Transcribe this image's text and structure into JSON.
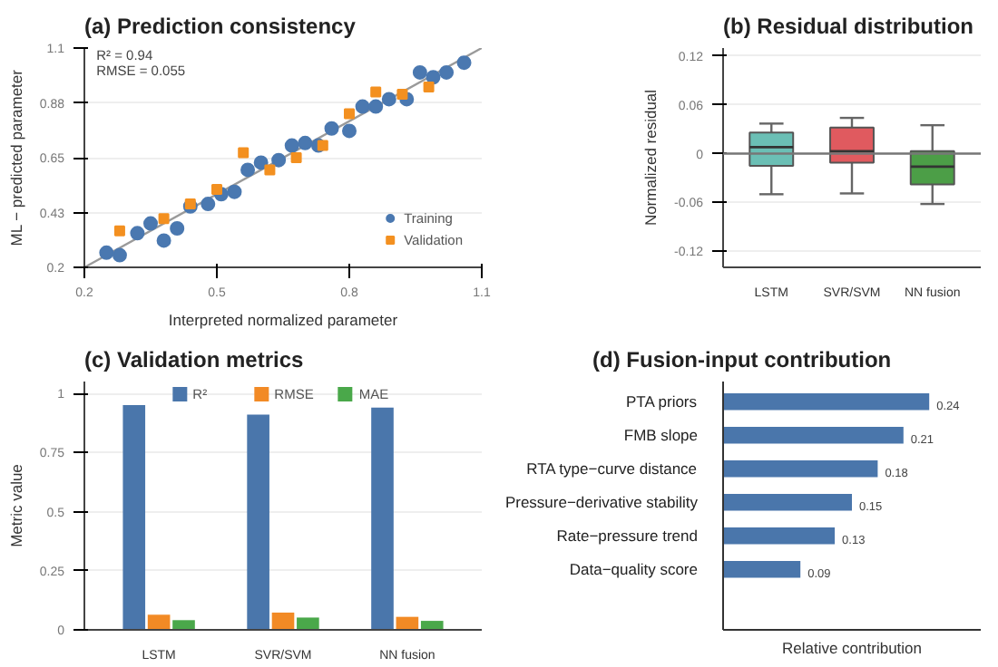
{
  "chart_data": [
    {
      "type": "scatter",
      "title": "(a) Prediction consistency",
      "xlabel": "Interpreted normalized parameter",
      "ylabel": "ML − predicted parameter",
      "xlim": [
        0.2,
        1.1
      ],
      "xticks": [
        0.2,
        0.5,
        0.8,
        1.1
      ],
      "ylim": [
        0.2,
        1.1
      ],
      "yticks": [
        0.2,
        {
          "value": 0.425,
          "label": "0.43"
        },
        0.65,
        {
          "value": 0.875,
          "label": "0.88"
        },
        1.1
      ],
      "grid": "y",
      "legend": "bottom right",
      "annotations": [
        "R² = 0.94",
        "RMSE = 0.055"
      ],
      "series": [
        {
          "type": "line",
          "color": "#9a9a9a",
          "x": [
            0.2,
            1.1
          ],
          "values": [
            0.2,
            1.1
          ]
        },
        {
          "name": "Training",
          "type": "scatter",
          "marker": "circle",
          "color": "#4a78b0",
          "x": [
            0.25,
            0.28,
            0.32,
            0.35,
            0.38,
            0.41,
            0.44,
            0.48,
            0.51,
            0.54,
            0.57,
            0.6,
            0.64,
            0.67,
            0.7,
            0.73,
            0.76,
            0.8,
            0.83,
            0.86,
            0.89,
            0.93,
            0.96,
            0.99,
            1.02,
            1.06
          ],
          "values": [
            0.26,
            0.25,
            0.34,
            0.38,
            0.31,
            0.36,
            0.45,
            0.46,
            0.5,
            0.51,
            0.6,
            0.63,
            0.64,
            0.7,
            0.71,
            0.7,
            0.77,
            0.76,
            0.86,
            0.86,
            0.89,
            0.89,
            1.0,
            0.98,
            1.0,
            1.04
          ]
        },
        {
          "name": "Validation",
          "type": "scatter",
          "marker": "square",
          "color": "#f39020",
          "x": [
            0.28,
            0.38,
            0.44,
            0.5,
            0.56,
            0.62,
            0.68,
            0.74,
            0.8,
            0.86,
            0.92,
            0.98
          ],
          "values": [
            0.35,
            0.4,
            0.46,
            0.52,
            0.67,
            0.6,
            0.65,
            0.7,
            0.83,
            0.92,
            0.91,
            0.94
          ]
        }
      ]
    },
    {
      "type": "box",
      "title": "(b) Residual distribution",
      "ylabel": "Normalized residual",
      "categories": [
        "LSTM",
        "SVR/SVM",
        "NN fusion"
      ],
      "colors": [
        "#6bbfb5",
        "#e05a5f",
        "#4c9e47"
      ],
      "ylim": [
        -0.14,
        0.13
      ],
      "yticks": [
        -0.12,
        -0.06,
        0,
        0.06,
        0.12
      ],
      "grid": "y",
      "ref_lines": [
        {
          "axis": "y",
          "value": 0,
          "color": "#777777"
        }
      ],
      "boxes": [
        {
          "low": -0.05,
          "q1": -0.015,
          "median": 0.008,
          "q3": 0.026,
          "high": 0.037
        },
        {
          "low": -0.049,
          "q1": -0.011,
          "median": 0.003,
          "q3": 0.032,
          "high": 0.044
        },
        {
          "low": -0.062,
          "q1": -0.038,
          "median": -0.016,
          "q3": 0.003,
          "high": 0.035
        }
      ]
    },
    {
      "type": "bar",
      "title": "(c) Validation metrics",
      "ylabel": "Metric value",
      "categories": [
        "LSTM",
        "SVR/SVM",
        "NN fusion"
      ],
      "ylim": [
        0,
        1.05
      ],
      "yticks": [
        0,
        0.25,
        0.5,
        0.75,
        1
      ],
      "grid": "y",
      "legend": "top",
      "series": [
        {
          "name": "R²",
          "color": "#4a76ab",
          "values": [
            0.95,
            0.91,
            0.94
          ]
        },
        {
          "name": "RMSE",
          "color": "#f28a25",
          "values": [
            0.064,
            0.073,
            0.055
          ]
        },
        {
          "name": "MAE",
          "color": "#4aa84a",
          "values": [
            0.041,
            0.052,
            0.038
          ]
        }
      ]
    },
    {
      "type": "bar",
      "orientation": "horizontal",
      "title": "(d) Fusion-input contribution",
      "xlabel": "Relative contribution",
      "categories": [
        "PTA priors",
        "FMB slope",
        "RTA type−curve distance",
        "Pressure−derivative stability",
        "Rate−pressure trend",
        "Data−quality score"
      ],
      "values": [
        0.24,
        0.21,
        0.18,
        0.15,
        0.13,
        0.09
      ],
      "color": "#4a76ab",
      "data_labels": true,
      "tick_labels": "y",
      "grid": false
    }
  ]
}
